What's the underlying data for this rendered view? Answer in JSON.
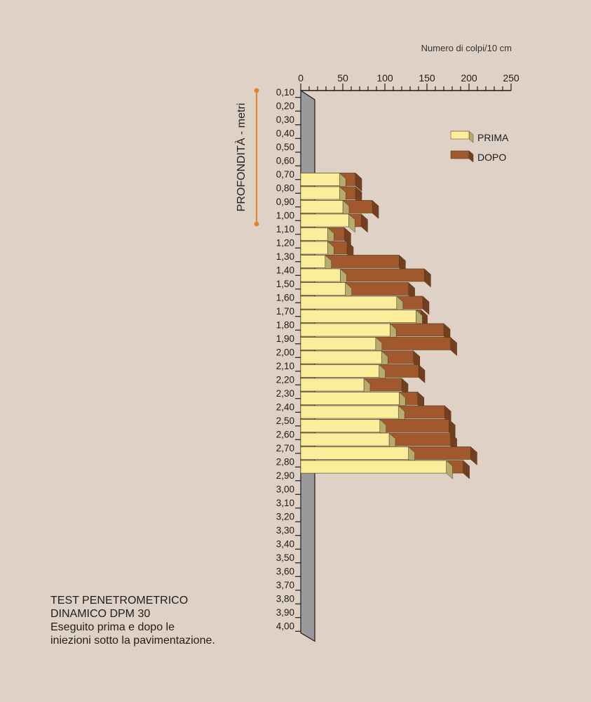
{
  "chart_data": {
    "type": "bar",
    "orientation": "horizontal",
    "x_axis_title": "Numero di colpi/10 cm",
    "y_axis_title": "PROFONDITÀ - metri",
    "x_ticks": [
      "0",
      "50",
      "100",
      "150",
      "200",
      "250"
    ],
    "xlim": [
      0,
      250
    ],
    "categories": [
      "0,10",
      "0,20",
      "0,30",
      "0,40",
      "0,50",
      "0,60",
      "0,70",
      "0,80",
      "0,90",
      "1,00",
      "1,10",
      "1,20",
      "1,30",
      "1,40",
      "1,50",
      "1,60",
      "1,70",
      "1,80",
      "1,90",
      "2,00",
      "2,10",
      "2,20",
      "2,30",
      "2,40",
      "2,50",
      "2,60",
      "2,70",
      "2,80",
      "2,90",
      "3,00",
      "3,10",
      "3,20",
      "3,30",
      "3,40",
      "3,50",
      "3,60",
      "3,70",
      "3,80",
      "3,90",
      "4,00"
    ],
    "series": [
      {
        "name": "PRIMA",
        "color": "#fbed9a",
        "values": [
          null,
          null,
          null,
          null,
          null,
          null,
          46,
          46,
          50,
          57,
          32,
          32,
          29,
          47,
          53,
          114,
          137,
          106,
          89,
          96,
          93,
          75,
          117,
          116,
          94,
          105,
          128,
          173,
          null,
          null,
          null,
          null,
          null,
          null,
          null,
          null,
          null,
          null,
          null,
          null
        ]
      },
      {
        "name": "DOPO",
        "color": "#a0582c",
        "values": [
          null,
          null,
          null,
          null,
          null,
          null,
          65,
          65,
          85,
          72,
          52,
          55,
          117,
          147,
          128,
          145,
          143,
          170,
          178,
          134,
          140,
          120,
          139,
          171,
          176,
          178,
          202,
          193,
          null,
          null,
          null,
          null,
          null,
          null,
          null,
          null,
          null,
          null,
          null,
          null
        ]
      }
    ],
    "legend": [
      "PRIMA",
      "DOPO"
    ],
    "legend_position": "top-right",
    "grid": false
  },
  "caption": {
    "line1": "TEST PENETROMETRICO",
    "line2": "DINAMICO DPM 30",
    "line3": "Eseguito prima e dopo le",
    "line4": "iniezioni sotto la pavimentazione."
  }
}
